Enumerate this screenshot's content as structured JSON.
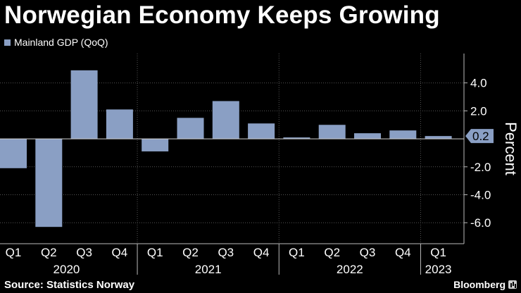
{
  "header": {
    "title": "Norwegian Economy Keeps Growing"
  },
  "legend": {
    "label": "Mainland GDP (QoQ)"
  },
  "footer": {
    "source": "Source: Statistics Norway",
    "brand": "Bloomberg"
  },
  "colors": {
    "background": "#000000",
    "bar": "#8a9fc4",
    "grid": "#555555",
    "text": "#ffffff"
  },
  "chart_data": {
    "type": "bar",
    "title": "Norwegian Economy Keeps Growing",
    "ylabel": "Percent",
    "xlabel": "",
    "ylim": [
      -7.5,
      6.1
    ],
    "yticks": [
      4.0,
      2.0,
      -2.0,
      -4.0,
      -6.0
    ],
    "ytick_labels": [
      "4.0",
      "2.0",
      "-2.0",
      "-4.0",
      "-6.0"
    ],
    "grid": true,
    "categories": [
      "Q1",
      "Q2",
      "Q3",
      "Q4",
      "Q1",
      "Q2",
      "Q3",
      "Q4",
      "Q1",
      "Q2",
      "Q3",
      "Q4",
      "Q1"
    ],
    "years": [
      {
        "label": "2020",
        "start": 0,
        "end": 3
      },
      {
        "label": "2021",
        "start": 4,
        "end": 7
      },
      {
        "label": "2022",
        "start": 8,
        "end": 11
      },
      {
        "label": "2023",
        "start": 12,
        "end": 12
      }
    ],
    "series": [
      {
        "name": "Mainland GDP (QoQ)",
        "values": [
          -2.1,
          -6.3,
          4.9,
          2.1,
          -0.9,
          1.5,
          2.7,
          1.1,
          0.1,
          1.0,
          0.4,
          0.6,
          0.2
        ]
      }
    ],
    "last_value_label": "0.2"
  }
}
